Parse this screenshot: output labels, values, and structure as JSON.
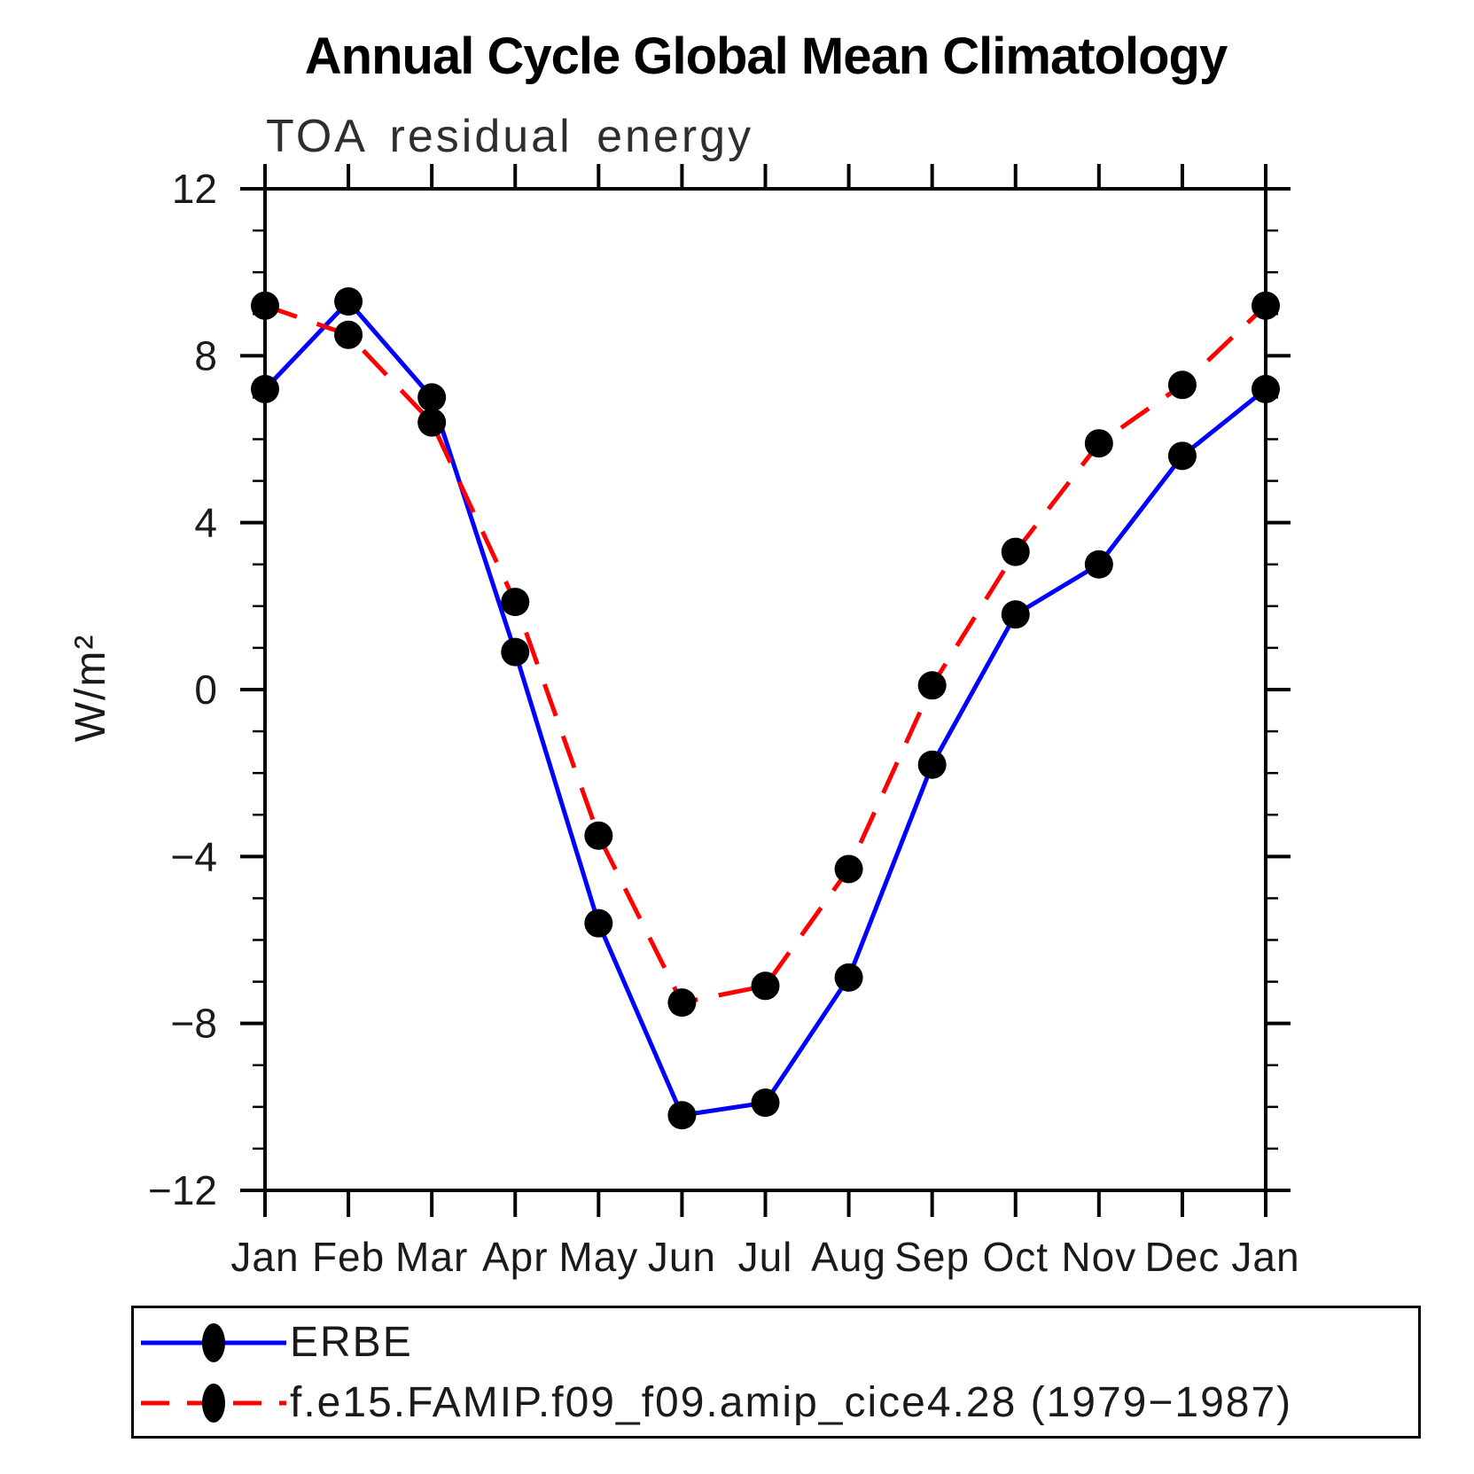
{
  "chart": {
    "title": "Annual Cycle Global Mean Climatology",
    "subtitle": "TOA residual energy"
  },
  "chart_data": {
    "type": "line",
    "x_categories": [
      "Jan",
      "Feb",
      "Mar",
      "Apr",
      "May",
      "Jun",
      "Jul",
      "Aug",
      "Sep",
      "Oct",
      "Nov",
      "Dec",
      "Jan"
    ],
    "xlabel": "",
    "ylabel": "W/m²",
    "ylim": [
      -12,
      12
    ],
    "ytick_major_values": [
      -12,
      -8,
      -4,
      0,
      4,
      8,
      12
    ],
    "ytick_major_labels": [
      "−12",
      "−8",
      "−4",
      "0",
      "4",
      "8",
      "12"
    ],
    "ytick_minor_step": 1,
    "grid": false,
    "legend_position": "bottom",
    "series": [
      {
        "name": "ERBE",
        "color": "#0000ff",
        "line_style": "solid",
        "marker": "circle",
        "marker_color": "#000000",
        "values": [
          7.2,
          9.3,
          7.0,
          0.9,
          -5.6,
          -10.2,
          -9.9,
          -6.9,
          -1.8,
          1.8,
          3.0,
          5.6,
          7.2
        ]
      },
      {
        "name": "f.e15.FAMIP.f09_f09.amip_cice4.28 (1979−1987)",
        "color": "#ff0000",
        "line_style": "dashed",
        "marker": "circle",
        "marker_color": "#000000",
        "values": [
          9.2,
          8.5,
          6.4,
          2.1,
          -3.5,
          -7.5,
          -7.1,
          -4.3,
          0.1,
          3.3,
          5.9,
          7.3,
          9.2
        ]
      }
    ]
  },
  "colors": {
    "axis": "#000000",
    "tick_label": "#1a1a1a",
    "background": "#ffffff"
  }
}
